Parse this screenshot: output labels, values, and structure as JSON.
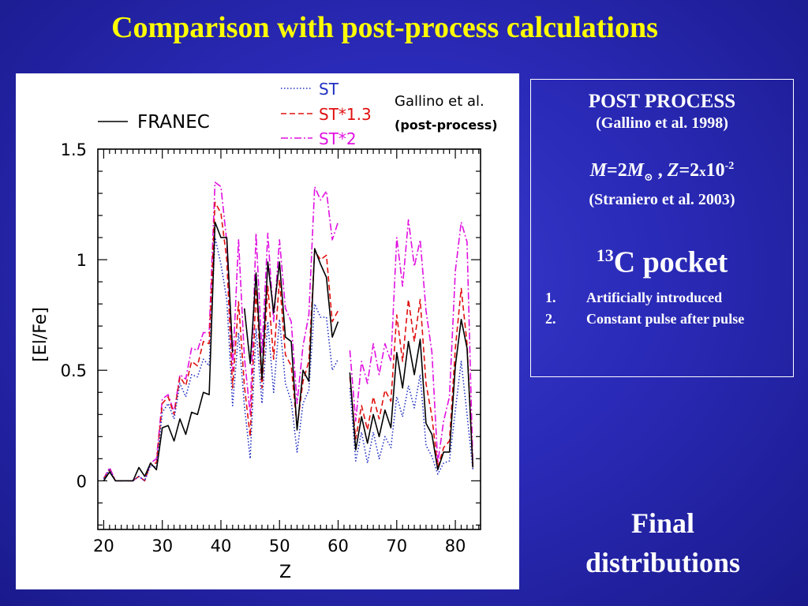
{
  "slide": {
    "title": "Comparison with post-process calculations",
    "final_line1": "Final",
    "final_line2": "distributions"
  },
  "info_box": {
    "heading": "POST PROCESS",
    "heading_ref": "(Gallino et al. 1998)",
    "mass_sym": "M",
    "mass_eq": "=2",
    "mass_sym2": "M",
    "sun_sub": "⊙",
    "sep": " , ",
    "z_sym": "Z",
    "z_eq": "=2",
    "times": "x",
    "z_base": "10",
    "z_exp": "-2",
    "model_ref": "(Straniero et al. 2003)",
    "pocket_sup": "13",
    "pocket_text": "C pocket",
    "items": [
      {
        "num": "1.",
        "text": "Artificially introduced"
      },
      {
        "num": "2.",
        "text": "Constant pulse after pulse"
      }
    ]
  },
  "chart_data": {
    "type": "line",
    "xlabel": "Z",
    "ylabel": "[El/Fe]",
    "xlim": [
      19,
      84.3
    ],
    "ylim": [
      -0.22,
      1.5
    ],
    "xticks": [
      20,
      30,
      40,
      50,
      60,
      70,
      80
    ],
    "yticks": [
      0,
      0.5,
      1,
      1.5
    ],
    "ytick_labels": [
      "0",
      "0.5",
      "1",
      "1.5"
    ],
    "legend_group_line1": "Gallino et al.",
    "legend_group_line2": "(post-process)",
    "colors": {
      "FRANEC": "#000000",
      "ST": "#2030c0",
      "ST*1.3": "#e01010",
      "ST*2": "#e010e0"
    },
    "series": [
      {
        "name": "FRANEC",
        "x": [
          20,
          21,
          22,
          23,
          24,
          25,
          26,
          27,
          28,
          29,
          30,
          31,
          32,
          33,
          34,
          35,
          36,
          37,
          38,
          39,
          40,
          41,
          42,
          null,
          44,
          45,
          46,
          47,
          48,
          49,
          50,
          51,
          52,
          53,
          54,
          55,
          56,
          57,
          58,
          59,
          60,
          null,
          62,
          63,
          64,
          65,
          66,
          67,
          68,
          69,
          70,
          71,
          72,
          73,
          74,
          75,
          76,
          77,
          78,
          79,
          80,
          81,
          82,
          83
        ],
        "y": [
          0.0,
          0.04,
          0.0,
          0.0,
          0.0,
          0.0,
          0.06,
          0.02,
          0.08,
          0.05,
          0.24,
          0.25,
          0.18,
          0.28,
          0.21,
          0.31,
          0.3,
          0.4,
          0.39,
          1.17,
          1.1,
          1.1,
          0.58,
          null,
          0.78,
          0.53,
          0.94,
          0.46,
          0.99,
          0.76,
          0.99,
          0.65,
          0.63,
          0.23,
          0.5,
          0.45,
          1.05,
          0.98,
          0.92,
          0.65,
          0.72,
          null,
          0.49,
          0.14,
          0.29,
          0.17,
          0.3,
          0.2,
          0.32,
          0.24,
          0.58,
          0.42,
          0.63,
          0.48,
          0.64,
          0.26,
          0.21,
          0.05,
          0.13,
          0.13,
          0.52,
          0.73,
          0.6,
          0.06
        ]
      },
      {
        "name": "ST",
        "x": [
          20,
          21,
          22,
          23,
          24,
          25,
          26,
          27,
          28,
          29,
          30,
          31,
          32,
          33,
          34,
          35,
          36,
          37,
          38,
          39,
          40,
          41,
          42,
          43,
          44,
          45,
          46,
          47,
          48,
          49,
          50,
          51,
          52,
          53,
          54,
          55,
          56,
          57,
          58,
          59,
          60,
          null,
          62,
          63,
          64,
          65,
          66,
          67,
          68,
          69,
          70,
          71,
          72,
          73,
          74,
          75,
          76,
          77,
          78,
          79,
          80,
          81,
          82,
          83
        ],
        "y": [
          0.01,
          0.05,
          0.0,
          0.0,
          0.0,
          0.0,
          0.02,
          0.0,
          0.07,
          0.06,
          0.31,
          0.35,
          0.28,
          0.44,
          0.38,
          0.48,
          0.47,
          0.55,
          0.52,
          1.1,
          0.98,
          0.82,
          0.34,
          0.67,
          0.34,
          0.1,
          0.69,
          0.35,
          0.72,
          0.4,
          0.73,
          0.44,
          0.36,
          0.13,
          0.35,
          0.41,
          0.8,
          0.74,
          0.74,
          0.5,
          0.55,
          null,
          0.42,
          0.09,
          0.22,
          0.08,
          0.22,
          0.1,
          0.2,
          0.15,
          0.38,
          0.29,
          0.43,
          0.33,
          0.48,
          0.16,
          0.11,
          0.03,
          0.08,
          0.09,
          0.32,
          0.54,
          0.3,
          0.05
        ]
      },
      {
        "name": "ST*1.3",
        "x": [
          20,
          21,
          22,
          23,
          24,
          25,
          26,
          27,
          28,
          29,
          30,
          31,
          32,
          33,
          34,
          35,
          36,
          37,
          38,
          39,
          40,
          41,
          42,
          43,
          44,
          45,
          46,
          47,
          48,
          49,
          50,
          51,
          52,
          53,
          54,
          55,
          56,
          57,
          58,
          59,
          60,
          null,
          62,
          63,
          64,
          65,
          66,
          67,
          68,
          69,
          70,
          71,
          72,
          73,
          74,
          75,
          76,
          77,
          78,
          79,
          80,
          81,
          82,
          83
        ],
        "y": [
          0.01,
          0.05,
          0.0,
          0.0,
          0.0,
          0.0,
          0.02,
          0.0,
          0.08,
          0.08,
          0.35,
          0.38,
          0.3,
          0.47,
          0.43,
          0.54,
          0.52,
          0.63,
          0.62,
          1.26,
          1.21,
          1.0,
          0.42,
          0.81,
          0.43,
          0.2,
          0.87,
          0.42,
          0.88,
          0.55,
          0.91,
          0.57,
          0.52,
          0.24,
          0.45,
          0.54,
          1.04,
          1.0,
          1.02,
          0.72,
          0.77,
          null,
          0.47,
          0.19,
          0.34,
          0.23,
          0.38,
          0.28,
          0.41,
          0.36,
          0.75,
          0.54,
          0.82,
          0.63,
          0.82,
          0.44,
          0.29,
          0.06,
          0.15,
          0.18,
          0.6,
          0.87,
          0.62,
          0.06
        ]
      },
      {
        "name": "ST*2",
        "x": [
          20,
          21,
          22,
          23,
          24,
          25,
          26,
          27,
          28,
          29,
          30,
          31,
          32,
          33,
          34,
          35,
          36,
          37,
          38,
          39,
          40,
          41,
          42,
          43,
          44,
          45,
          46,
          47,
          48,
          49,
          50,
          51,
          52,
          53,
          54,
          55,
          56,
          57,
          58,
          59,
          60,
          null,
          62,
          63,
          64,
          65,
          66,
          67,
          68,
          69,
          70,
          71,
          72,
          73,
          74,
          75,
          76,
          77,
          78,
          79,
          80,
          81,
          82,
          83
        ],
        "y": [
          0.01,
          0.06,
          0.0,
          0.0,
          0.0,
          0.0,
          0.02,
          0.0,
          0.08,
          0.1,
          0.37,
          0.39,
          0.31,
          0.48,
          0.46,
          0.6,
          0.59,
          0.67,
          0.67,
          1.35,
          1.33,
          1.08,
          0.5,
          1.09,
          0.56,
          0.3,
          1.12,
          0.58,
          1.12,
          0.72,
          1.09,
          0.78,
          0.72,
          0.35,
          0.61,
          0.75,
          1.33,
          1.27,
          1.31,
          1.09,
          1.17,
          null,
          0.59,
          0.27,
          0.54,
          0.44,
          0.62,
          0.48,
          0.62,
          0.54,
          1.1,
          0.88,
          1.18,
          0.97,
          1.09,
          0.77,
          0.58,
          0.08,
          0.27,
          0.38,
          0.95,
          1.17,
          1.08,
          0.07
        ]
      }
    ]
  }
}
